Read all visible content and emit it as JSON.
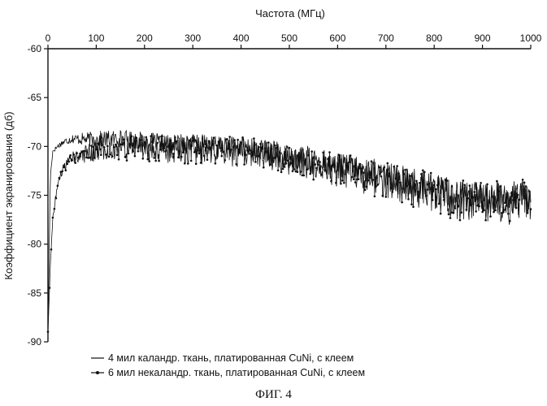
{
  "chart_data": {
    "type": "line",
    "xlabel": "Частота (МГц)",
    "ylabel": "Коэффициент экранирования (дб)",
    "x_axis_position": "top",
    "xlim": [
      0,
      1000
    ],
    "ylim": [
      -90,
      -60
    ],
    "xticks": [
      "0",
      "100",
      "200",
      "300",
      "400",
      "500",
      "600",
      "700",
      "800",
      "900",
      "1000"
    ],
    "yticks": [
      "-60",
      "-65",
      "-70",
      "-75",
      "-80",
      "-85",
      "-90"
    ],
    "grid": false,
    "legend_position": "bottom-left",
    "series": [
      {
        "name": "4 мил каландр. ткань, платированная CuNi, с клеем",
        "marker": "line",
        "x": [
          0,
          5,
          10,
          20,
          30,
          50,
          100,
          150,
          200,
          250,
          300,
          350,
          400,
          450,
          500,
          550,
          600,
          650,
          700,
          750,
          800,
          850,
          900,
          950,
          1000
        ],
        "y": [
          -89,
          -73,
          -70.5,
          -70,
          -69.6,
          -69.2,
          -69.3,
          -69.2,
          -69.5,
          -69.8,
          -69.7,
          -70.0,
          -70.2,
          -70.5,
          -71.0,
          -71.5,
          -72.0,
          -72.5,
          -73.2,
          -73.8,
          -74.3,
          -75.0,
          -75.3,
          -75.5,
          -75.3
        ],
        "spread": 1.3
      },
      {
        "name": "6 мил некаландр. ткань, платированная CuNi, с клеем",
        "marker": "dot",
        "x": [
          0,
          5,
          10,
          15,
          20,
          30,
          40,
          50,
          70,
          100,
          150,
          200,
          250,
          300,
          350,
          400,
          450,
          500,
          550,
          600,
          650,
          700,
          750,
          800,
          850,
          900,
          950,
          1000
        ],
        "y": [
          -89,
          -82,
          -77.5,
          -75.5,
          -74,
          -72.5,
          -71.8,
          -71.2,
          -70.8,
          -70.5,
          -70.3,
          -70.2,
          -70.3,
          -70.3,
          -70.4,
          -70.6,
          -70.9,
          -71.3,
          -71.7,
          -72.3,
          -72.9,
          -73.5,
          -74.2,
          -74.8,
          -75.4,
          -75.8,
          -75.8,
          -75.6
        ],
        "spread": 1.8
      }
    ]
  },
  "caption": "ФИГ. 4"
}
